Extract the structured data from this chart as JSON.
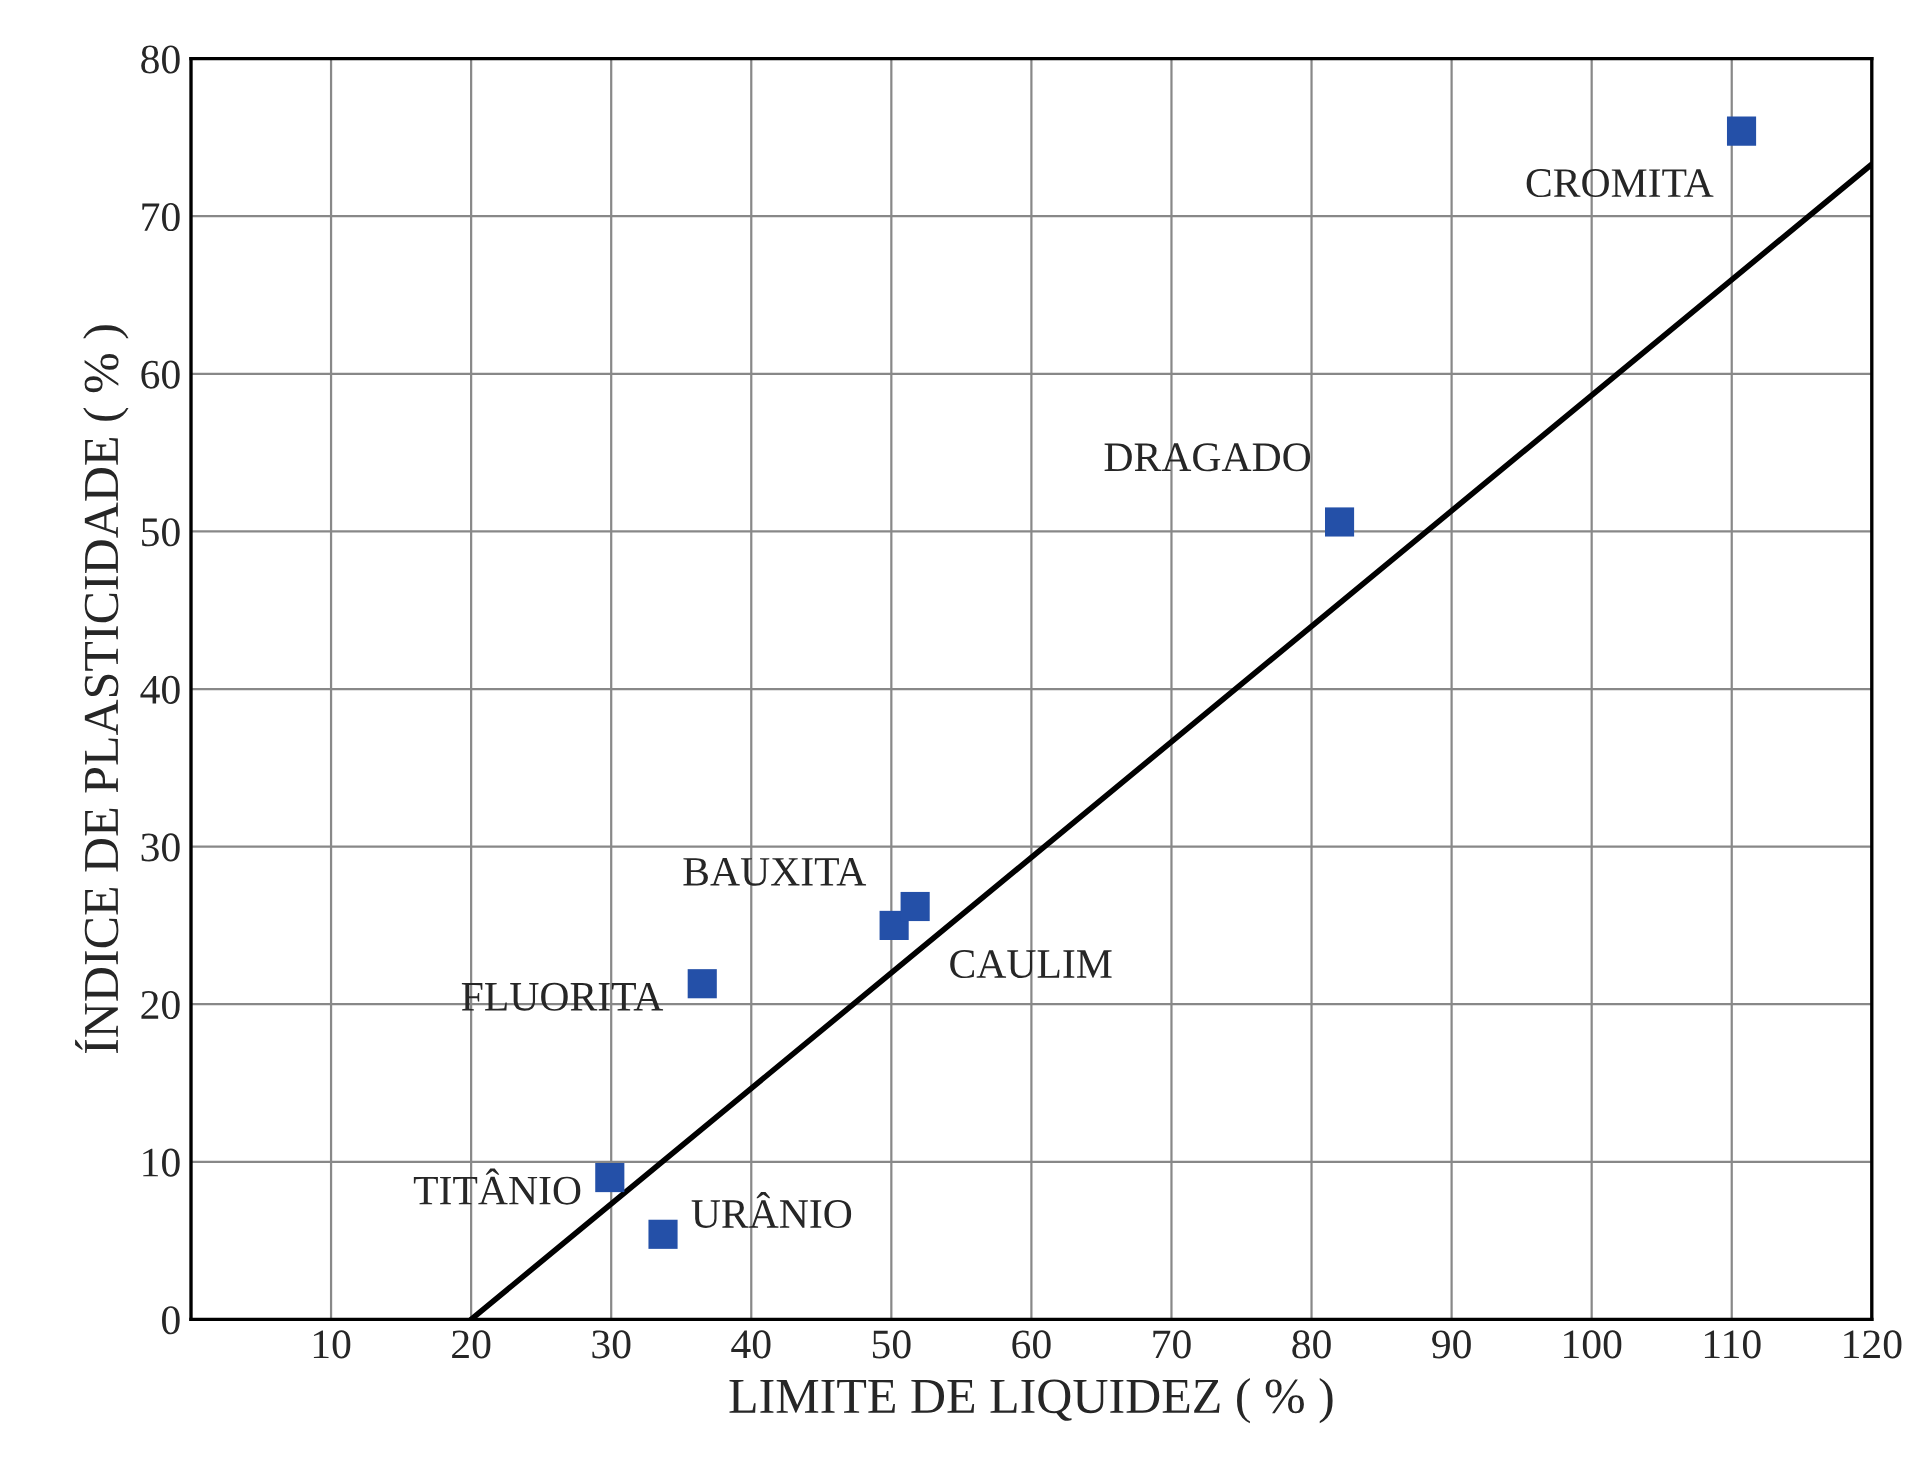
{
  "chart_data": {
    "type": "scatter",
    "xlabel": "LIMITE DE LIQUIDEZ ( % )",
    "ylabel": "ÍNDICE DE PLASTICIDADE ( % )",
    "series": [
      {
        "color": "#2450a8",
        "marker": "square",
        "x": [
          110.7,
          82.0,
          50.2,
          51.7,
          36.5,
          29.9,
          33.7
        ],
        "values": [
          75.4,
          50.6,
          25.0,
          26.2,
          21.3,
          9.0,
          5.4
        ]
      },
      {
        "type": "line",
        "color": "#000000",
        "x": [
          20,
          120
        ],
        "values": [
          0,
          73.3
        ]
      }
    ],
    "annotations": [
      {
        "text": "CROMITA",
        "x": 110.7,
        "y": 75.4
      },
      {
        "text": "DRAGADO",
        "x": 82.0,
        "y": 50.6
      },
      {
        "text": "BAUXITA",
        "x": 50.2,
        "y": 25.0
      },
      {
        "text": "CAULIM",
        "x": 51.7,
        "y": 26.2
      },
      {
        "text": "FLUORITA",
        "x": 36.5,
        "y": 21.3
      },
      {
        "text": "TITÂNIO",
        "x": 29.9,
        "y": 9.0
      },
      {
        "text": "URÂNIO",
        "x": 33.7,
        "y": 5.4
      }
    ],
    "xlim": [
      0,
      120
    ],
    "xticks": [
      10,
      20,
      30,
      40,
      50,
      60,
      70,
      80,
      90,
      100,
      110,
      120
    ],
    "ylim": [
      0,
      80
    ],
    "yticks": [
      0,
      10,
      20,
      30,
      40,
      50,
      60,
      70,
      80
    ],
    "grid": true,
    "legend": false
  }
}
